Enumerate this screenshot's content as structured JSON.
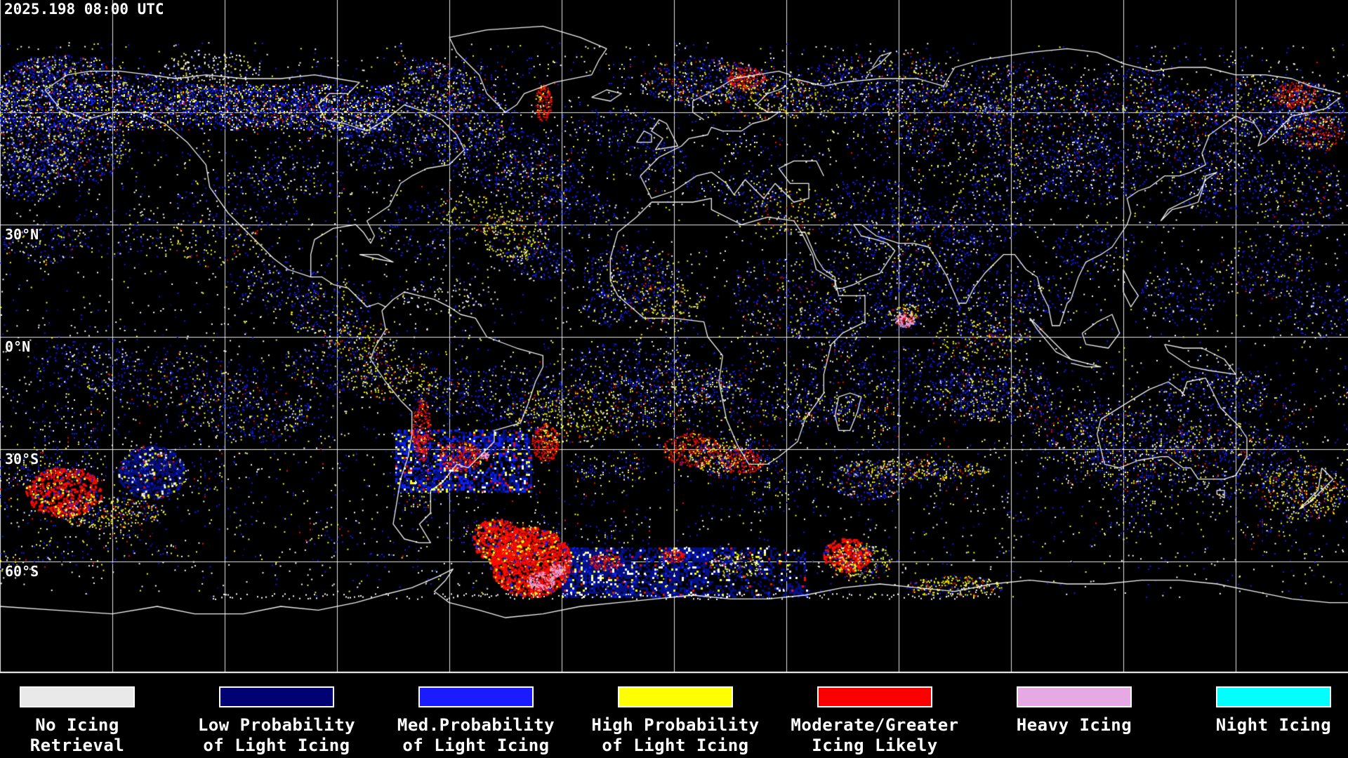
{
  "header": {
    "timestamp": "2025.198 08:00 UTC"
  },
  "map": {
    "projection": "equirectangular",
    "grid_spacing_deg": 30,
    "latitude_labels": [
      {
        "text": "30°N"
      },
      {
        "text": "0°N"
      },
      {
        "text": "30°S"
      },
      {
        "text": "60°S"
      }
    ]
  },
  "legend": {
    "items": [
      {
        "label_line1": "No Icing",
        "label_line2": "Retrieval",
        "color": "#e9e9e9"
      },
      {
        "label_line1": "Low Probability",
        "label_line2": "of Light Icing",
        "color": "#010173"
      },
      {
        "label_line1": "Med.Probability",
        "label_line2": "of Light Icing",
        "color": "#1b1bff"
      },
      {
        "label_line1": "High Probability",
        "label_line2": "of Light Icing",
        "color": "#ffff00"
      },
      {
        "label_line1": "Moderate/Greater",
        "label_line2": "Icing Likely",
        "color": "#fa0000"
      },
      {
        "label_line1": "Heavy Icing",
        "label_line2": "",
        "color": "#e6a9e4"
      },
      {
        "label_line1": "Night Icing",
        "label_line2": "",
        "color": "#00ffff"
      }
    ]
  }
}
